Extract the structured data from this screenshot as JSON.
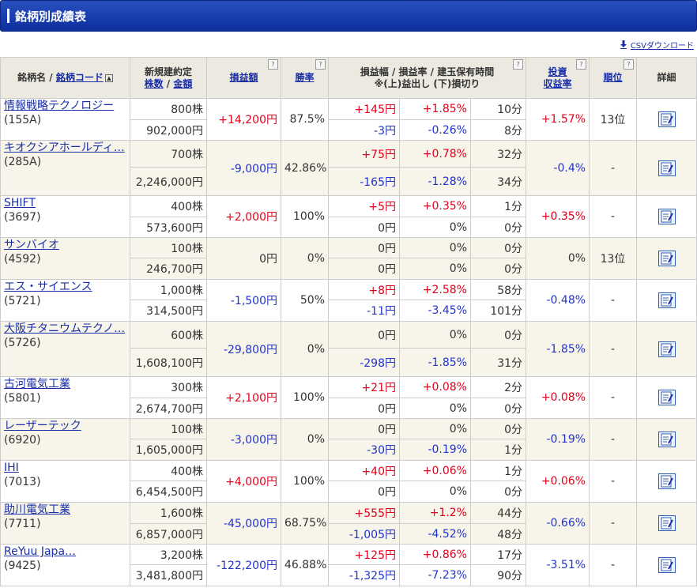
{
  "title": "銘柄別成績表",
  "csv_label": "CSVダウンロード",
  "headers": {
    "name": "銘柄名",
    "code": "銘柄コード",
    "qty_line1": "新規建約定",
    "qty_shares": "株数",
    "qty_amount": "金額",
    "pl": "損益額",
    "winrate": "勝率",
    "detail_line1": "損益幅 / 損益率 / 建玉保有時間",
    "detail_line2": "※(上)益出し (下)損切り",
    "roi_line1": "投資",
    "roi_line2": "収益率",
    "rank": "順位",
    "details": "詳細"
  },
  "rows": [
    {
      "name": "情報戦略テクノロジー",
      "code": "(155A)",
      "shares": "800株",
      "amount": "902,000円",
      "pl": "+14,200円",
      "win": "87.5%",
      "up_w": "+145円",
      "up_r": "+1.85%",
      "up_t": "10分",
      "dn_w": "-3円",
      "dn_r": "-0.26%",
      "dn_t": "8分",
      "roi": "+1.57%",
      "rank": "13位"
    },
    {
      "name": "キオクシアホールディ…",
      "code": "(285A)",
      "shares": "700株",
      "amount": "2,246,000円",
      "pl": "-9,000円",
      "win": "42.86%",
      "up_w": "+75円",
      "up_r": "+0.78%",
      "up_t": "32分",
      "dn_w": "-165円",
      "dn_r": "-1.28%",
      "dn_t": "34分",
      "roi": "-0.4%",
      "rank": "-"
    },
    {
      "name": "SHIFT",
      "code": "(3697)",
      "shares": "400株",
      "amount": "573,600円",
      "pl": "+2,000円",
      "win": "100%",
      "up_w": "+5円",
      "up_r": "+0.35%",
      "up_t": "1分",
      "dn_w": "0円",
      "dn_r": "0%",
      "dn_t": "0分",
      "roi": "+0.35%",
      "rank": "-"
    },
    {
      "name": "サンバイオ",
      "code": "(4592)",
      "shares": "100株",
      "amount": "246,700円",
      "pl": "0円",
      "win": "0%",
      "up_w": "0円",
      "up_r": "0%",
      "up_t": "0分",
      "dn_w": "0円",
      "dn_r": "0%",
      "dn_t": "0分",
      "roi": "0%",
      "rank": "13位"
    },
    {
      "name": "エス・サイエンス",
      "code": "(5721)",
      "shares": "1,000株",
      "amount": "314,500円",
      "pl": "-1,500円",
      "win": "50%",
      "up_w": "+8円",
      "up_r": "+2.58%",
      "up_t": "58分",
      "dn_w": "-11円",
      "dn_r": "-3.45%",
      "dn_t": "101分",
      "roi": "-0.48%",
      "rank": "-"
    },
    {
      "name": "大阪チタニウムテクノ…",
      "code": "(5726)",
      "shares": "600株",
      "amount": "1,608,100円",
      "pl": "-29,800円",
      "win": "0%",
      "up_w": "0円",
      "up_r": "0%",
      "up_t": "0分",
      "dn_w": "-298円",
      "dn_r": "-1.85%",
      "dn_t": "31分",
      "roi": "-1.85%",
      "rank": "-"
    },
    {
      "name": "古河電気工業",
      "code": "(5801)",
      "shares": "300株",
      "amount": "2,674,700円",
      "pl": "+2,100円",
      "win": "100%",
      "up_w": "+21円",
      "up_r": "+0.08%",
      "up_t": "2分",
      "dn_w": "0円",
      "dn_r": "0%",
      "dn_t": "0分",
      "roi": "+0.08%",
      "rank": "-"
    },
    {
      "name": "レーザーテック",
      "code": "(6920)",
      "shares": "100株",
      "amount": "1,605,000円",
      "pl": "-3,000円",
      "win": "0%",
      "up_w": "0円",
      "up_r": "0%",
      "up_t": "0分",
      "dn_w": "-30円",
      "dn_r": "-0.19%",
      "dn_t": "1分",
      "roi": "-0.19%",
      "rank": "-"
    },
    {
      "name": "IHI",
      "code": "(7013)",
      "shares": "400株",
      "amount": "6,454,500円",
      "pl": "+4,000円",
      "win": "100%",
      "up_w": "+40円",
      "up_r": "+0.06%",
      "up_t": "1分",
      "dn_w": "0円",
      "dn_r": "0%",
      "dn_t": "0分",
      "roi": "+0.06%",
      "rank": "-"
    },
    {
      "name": "助川電気工業",
      "code": "(7711)",
      "shares": "1,600株",
      "amount": "6,857,000円",
      "pl": "-45,000円",
      "win": "68.75%",
      "up_w": "+555円",
      "up_r": "+1.2%",
      "up_t": "44分",
      "dn_w": "-1,005円",
      "dn_r": "-4.52%",
      "dn_t": "48分",
      "roi": "-0.66%",
      "rank": "-"
    },
    {
      "name": "ReYuu Japa…",
      "code": "(9425)",
      "shares": "3,200株",
      "amount": "3,481,800円",
      "pl": "-122,200円",
      "win": "46.88%",
      "up_w": "+125円",
      "up_r": "+0.86%",
      "up_t": "17分",
      "dn_w": "-1,325円",
      "dn_r": "-7.23%",
      "dn_t": "90分",
      "roi": "-3.51%",
      "rank": "-"
    }
  ]
}
